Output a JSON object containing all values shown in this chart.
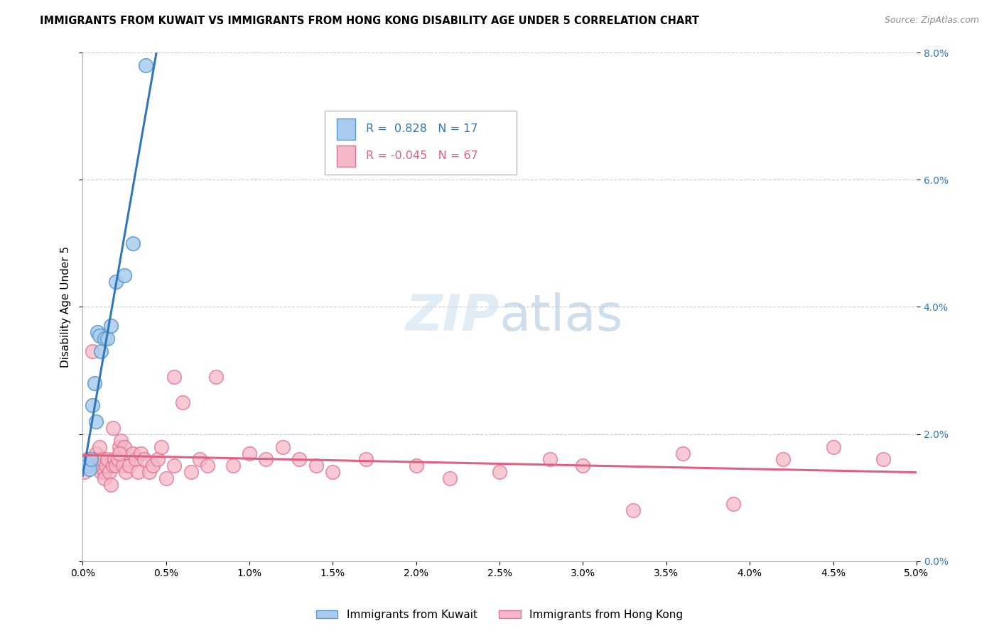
{
  "title": "IMMIGRANTS FROM KUWAIT VS IMMIGRANTS FROM HONG KONG DISABILITY AGE UNDER 5 CORRELATION CHART",
  "source": "Source: ZipAtlas.com",
  "ylabel": "Disability Age Under 5",
  "xlim": [
    0.0,
    5.0
  ],
  "ylim": [
    0.0,
    8.0
  ],
  "yticks": [
    0.0,
    2.0,
    4.0,
    6.0,
    8.0
  ],
  "xticks": [
    0.0,
    0.5,
    1.0,
    1.5,
    2.0,
    2.5,
    3.0,
    3.5,
    4.0,
    4.5,
    5.0
  ],
  "kuwait_R": 0.828,
  "kuwait_N": 17,
  "hongkong_R": -0.045,
  "hongkong_N": 67,
  "kuwait_color": "#aaccee",
  "kuwait_edge_color": "#5599cc",
  "kuwait_line_color": "#3377bb",
  "hongkong_color": "#f5b8c8",
  "hongkong_edge_color": "#e07090",
  "hongkong_line_color": "#e06080",
  "watermark_zip": "ZIP",
  "watermark_atlas": "atlas",
  "kuwait_x": [
    0.02,
    0.03,
    0.04,
    0.05,
    0.06,
    0.07,
    0.08,
    0.09,
    0.1,
    0.11,
    0.13,
    0.15,
    0.17,
    0.2,
    0.25,
    0.3,
    0.38
  ],
  "kuwait_y": [
    1.55,
    1.5,
    1.45,
    1.6,
    2.45,
    2.8,
    2.2,
    3.6,
    3.55,
    3.3,
    3.5,
    3.5,
    3.7,
    4.4,
    4.5,
    5.0,
    7.8
  ],
  "hongkong_x": [
    0.01,
    0.01,
    0.02,
    0.03,
    0.05,
    0.06,
    0.07,
    0.08,
    0.08,
    0.09,
    0.1,
    0.11,
    0.12,
    0.13,
    0.13,
    0.14,
    0.15,
    0.16,
    0.17,
    0.18,
    0.19,
    0.2,
    0.21,
    0.22,
    0.23,
    0.24,
    0.25,
    0.26,
    0.28,
    0.3,
    0.32,
    0.33,
    0.35,
    0.37,
    0.4,
    0.42,
    0.45,
    0.47,
    0.5,
    0.55,
    0.6,
    0.65,
    0.7,
    0.75,
    0.8,
    0.9,
    1.0,
    1.1,
    1.2,
    1.3,
    1.4,
    1.5,
    1.7,
    2.0,
    2.2,
    2.5,
    2.8,
    3.0,
    3.3,
    3.6,
    3.9,
    4.2,
    4.5,
    4.8,
    0.55,
    0.18,
    0.22
  ],
  "hongkong_y": [
    1.55,
    1.4,
    1.5,
    1.6,
    1.5,
    3.3,
    1.6,
    1.7,
    1.5,
    1.5,
    1.8,
    1.4,
    1.6,
    1.4,
    1.3,
    1.5,
    1.6,
    1.4,
    1.2,
    1.5,
    1.6,
    1.5,
    1.6,
    1.8,
    1.9,
    1.5,
    1.8,
    1.4,
    1.5,
    1.7,
    1.6,
    1.4,
    1.7,
    1.6,
    1.4,
    1.5,
    1.6,
    1.8,
    1.3,
    1.5,
    2.5,
    1.4,
    1.6,
    1.5,
    2.9,
    1.5,
    1.7,
    1.6,
    1.8,
    1.6,
    1.5,
    1.4,
    1.6,
    1.5,
    1.3,
    1.4,
    1.6,
    1.5,
    0.8,
    1.7,
    0.9,
    1.6,
    1.8,
    1.6,
    2.9,
    2.1,
    1.7
  ]
}
